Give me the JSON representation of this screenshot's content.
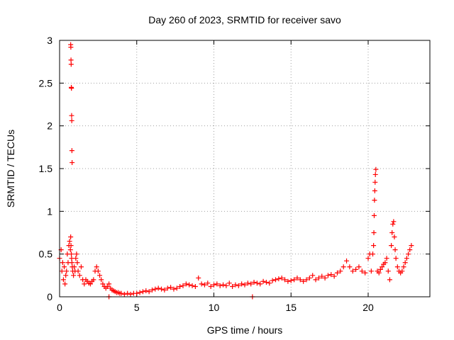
{
  "chart_data": {
    "type": "scatter",
    "title": "Day 260 of 2023, SRMTID for receiver savo",
    "xlabel": "GPS time / hours",
    "ylabel": "SRMTID / TECUs",
    "xlim": [
      0,
      24
    ],
    "ylim": [
      0,
      3
    ],
    "xticks": [
      0,
      5,
      10,
      15,
      20
    ],
    "xtick_labels": [
      "0",
      "5",
      "10",
      "15",
      "20"
    ],
    "yticks": [
      0,
      0.5,
      1,
      1.5,
      2,
      2.5,
      3
    ],
    "ytick_labels": [
      "0",
      "0.5",
      "1",
      "1.5",
      "2",
      "2.5",
      "3"
    ],
    "grid": true,
    "marker": "+",
    "color": "#ff0000",
    "series": [
      {
        "name": "savo",
        "x": [
          0.0,
          0.1,
          0.15,
          0.2,
          0.25,
          0.3,
          0.35,
          0.4,
          0.45,
          0.5,
          0.55,
          0.6,
          0.65,
          0.7,
          0.72,
          0.74,
          0.76,
          0.78,
          0.8,
          0.82,
          0.85,
          0.9,
          0.95,
          1.0,
          1.05,
          1.1,
          1.15,
          1.2,
          1.3,
          1.4,
          1.5,
          1.6,
          1.7,
          1.8,
          1.9,
          2.0,
          2.1,
          2.2,
          2.3,
          2.4,
          2.5,
          2.6,
          2.7,
          2.8,
          2.9,
          3.0,
          3.1,
          3.2,
          3.3,
          3.4,
          3.5,
          3.6,
          3.7,
          3.8,
          3.9,
          4.0,
          4.2,
          4.4,
          4.6,
          4.8,
          5.0,
          5.2,
          5.4,
          5.6,
          5.8,
          6.0,
          6.2,
          6.4,
          6.6,
          6.8,
          7.0,
          7.2,
          7.4,
          7.6,
          7.8,
          8.0,
          8.2,
          8.4,
          8.6,
          8.8,
          9.0,
          9.2,
          9.4,
          9.6,
          9.8,
          10.0,
          10.2,
          10.4,
          10.6,
          10.8,
          11.0,
          11.2,
          11.4,
          11.6,
          11.8,
          12.0,
          12.2,
          12.4,
          12.6,
          12.8,
          13.0,
          13.2,
          13.4,
          13.6,
          13.8,
          14.0,
          14.2,
          14.4,
          14.6,
          14.8,
          15.0,
          15.2,
          15.4,
          15.6,
          15.8,
          16.0,
          16.2,
          16.4,
          16.6,
          16.8,
          17.0,
          17.2,
          17.4,
          17.6,
          17.8,
          18.0,
          18.2,
          18.4,
          18.6,
          18.8,
          19.0,
          19.2,
          19.4,
          19.6,
          19.8,
          20.0,
          20.1,
          20.2,
          20.3,
          20.35,
          20.37,
          20.39,
          20.41,
          20.43,
          20.45,
          20.47,
          20.5,
          20.6,
          20.7,
          20.8,
          20.9,
          21.0,
          21.1,
          21.2,
          21.3,
          21.4,
          21.5,
          21.55,
          21.6,
          21.65,
          21.7,
          21.75,
          21.8,
          21.9,
          22.0,
          22.1,
          22.2,
          22.3,
          22.4,
          22.5,
          22.6,
          22.7,
          22.8,
          0.72,
          0.73,
          0.74,
          0.75,
          0.76,
          0.77,
          0.78,
          0.79,
          0.8,
          0.81,
          3.2,
          12.5
        ],
        "y": [
          0.45,
          0.55,
          0.3,
          0.4,
          0.2,
          0.35,
          0.15,
          0.25,
          0.3,
          0.5,
          0.4,
          0.6,
          0.65,
          0.55,
          0.7,
          0.6,
          0.5,
          0.45,
          0.4,
          0.35,
          0.3,
          0.25,
          0.35,
          0.3,
          0.45,
          0.5,
          0.4,
          0.3,
          0.25,
          0.35,
          0.2,
          0.15,
          0.2,
          0.18,
          0.16,
          0.15,
          0.18,
          0.2,
          0.3,
          0.35,
          0.3,
          0.25,
          0.2,
          0.15,
          0.12,
          0.1,
          0.12,
          0.15,
          0.1,
          0.08,
          0.07,
          0.06,
          0.05,
          0.05,
          0.04,
          0.04,
          0.03,
          0.04,
          0.03,
          0.04,
          0.04,
          0.05,
          0.06,
          0.07,
          0.06,
          0.08,
          0.09,
          0.1,
          0.09,
          0.08,
          0.1,
          0.11,
          0.09,
          0.1,
          0.12,
          0.13,
          0.15,
          0.14,
          0.13,
          0.12,
          0.22,
          0.15,
          0.14,
          0.16,
          0.12,
          0.14,
          0.15,
          0.13,
          0.14,
          0.13,
          0.16,
          0.12,
          0.14,
          0.13,
          0.15,
          0.14,
          0.16,
          0.15,
          0.17,
          0.16,
          0.15,
          0.18,
          0.17,
          0.16,
          0.19,
          0.2,
          0.21,
          0.22,
          0.2,
          0.18,
          0.19,
          0.2,
          0.22,
          0.2,
          0.18,
          0.2,
          0.22,
          0.25,
          0.2,
          0.22,
          0.24,
          0.22,
          0.25,
          0.26,
          0.24,
          0.28,
          0.3,
          0.35,
          0.42,
          0.35,
          0.3,
          0.32,
          0.35,
          0.3,
          0.28,
          0.45,
          0.5,
          0.3,
          0.5,
          0.6,
          0.75,
          0.95,
          1.13,
          1.24,
          1.34,
          1.43,
          1.49,
          0.3,
          0.28,
          0.32,
          0.35,
          0.38,
          0.4,
          0.45,
          0.3,
          0.2,
          0.6,
          0.75,
          0.85,
          0.88,
          0.7,
          0.55,
          0.45,
          0.35,
          0.3,
          0.28,
          0.3,
          0.35,
          0.4,
          0.45,
          0.5,
          0.55,
          0.6,
          2.95,
          2.92,
          2.77,
          2.72,
          2.45,
          2.44,
          2.12,
          2.06,
          1.71,
          1.57,
          0.0,
          0.0
        ]
      }
    ]
  }
}
